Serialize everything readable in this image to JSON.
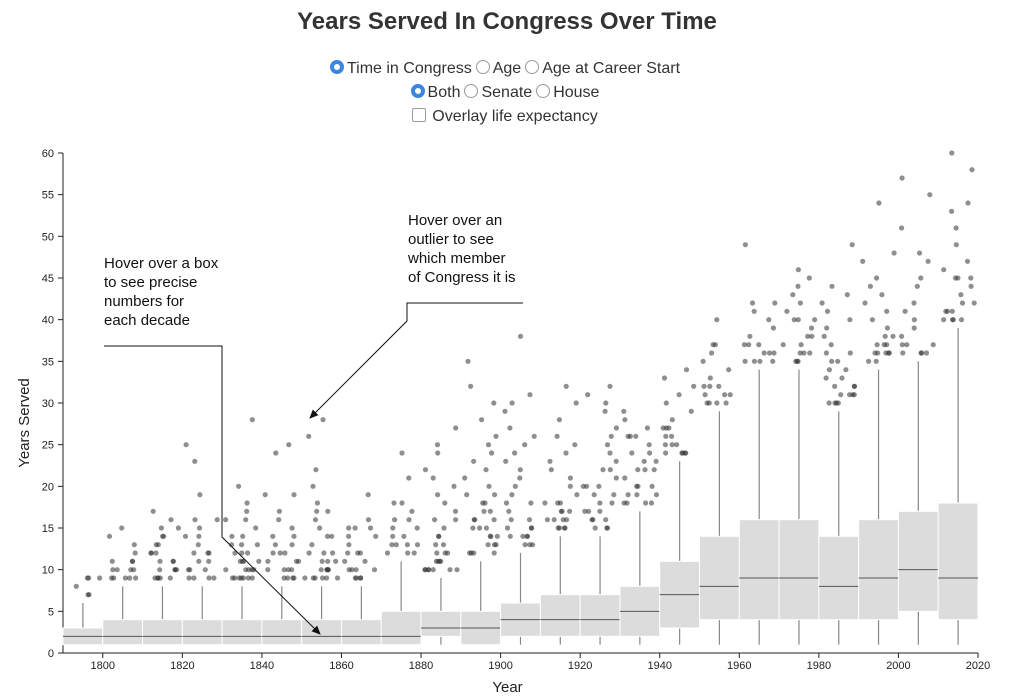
{
  "title": "Years Served In Congress Over Time",
  "controls": {
    "metric": [
      {
        "label": "Time in Congress",
        "selected": true
      },
      {
        "label": "Age",
        "selected": false
      },
      {
        "label": "Age at Career Start",
        "selected": false
      }
    ],
    "chamber": [
      {
        "label": "Both",
        "selected": true
      },
      {
        "label": "Senate",
        "selected": false
      },
      {
        "label": "House",
        "selected": false
      }
    ],
    "overlay": {
      "label": "Overlay life expectancy",
      "checked": false
    }
  },
  "colors": {
    "box_fill": "#dcdcdc",
    "accent": "#3b86e0",
    "point": "#333333"
  },
  "annotations": {
    "box": [
      "Hover over a box",
      "to see precise",
      "numbers for",
      "each decade"
    ],
    "outlier": [
      "Hover over an",
      "outlier to see",
      "which member",
      "of Congress it is"
    ]
  },
  "chart_data": {
    "type": "box",
    "title": "Years Served In Congress Over Time",
    "xlabel": "Year",
    "ylabel": "Years Served",
    "xlim": [
      1790,
      2020
    ],
    "ylim": [
      0,
      60
    ],
    "xticks": [
      1800,
      1820,
      1840,
      1860,
      1880,
      1900,
      1920,
      1940,
      1960,
      1980,
      2000,
      2020
    ],
    "yticks": [
      0,
      5,
      10,
      15,
      20,
      25,
      30,
      35,
      40,
      45,
      50,
      55,
      60
    ],
    "boxes": [
      {
        "decade": 1790,
        "min": 1,
        "q1": 1,
        "median": 2,
        "q3": 3,
        "max": 6,
        "outliers": [
          7,
          8,
          9,
          9,
          7,
          9
        ]
      },
      {
        "decade": 1800,
        "min": 1,
        "q1": 1,
        "median": 2,
        "q3": 4,
        "max": 8,
        "outliers": [
          9,
          9,
          9,
          10,
          10,
          10,
          11,
          11,
          9,
          9,
          10,
          11,
          12,
          13,
          14,
          15
        ]
      },
      {
        "decade": 1810,
        "min": 1,
        "q1": 1,
        "median": 2,
        "q3": 4,
        "max": 8,
        "outliers": [
          9,
          9,
          9,
          9,
          10,
          10,
          10,
          11,
          11,
          12,
          12,
          13,
          13,
          14,
          15,
          15,
          16,
          17,
          9,
          10,
          11,
          12,
          14
        ]
      },
      {
        "decade": 1820,
        "min": 1,
        "q1": 1,
        "median": 2,
        "q3": 4,
        "max": 8,
        "outliers": [
          9,
          9,
          9,
          10,
          10,
          11,
          11,
          12,
          12,
          13,
          14,
          15,
          16,
          19,
          25,
          9,
          10,
          12,
          14,
          16,
          23
        ]
      },
      {
        "decade": 1830,
        "min": 1,
        "q1": 1,
        "median": 2,
        "q3": 4,
        "max": 8,
        "outliers": [
          9,
          9,
          9,
          9,
          9,
          10,
          10,
          10,
          10,
          11,
          11,
          11,
          12,
          12,
          13,
          13,
          14,
          14,
          15,
          16,
          16,
          17,
          18,
          20,
          28,
          9,
          9,
          10,
          11,
          12,
          13
        ]
      },
      {
        "decade": 1840,
        "min": 1,
        "q1": 1,
        "median": 2,
        "q3": 4,
        "max": 8,
        "outliers": [
          9,
          9,
          9,
          10,
          10,
          10,
          11,
          11,
          12,
          12,
          13,
          13,
          14,
          14,
          15,
          16,
          17,
          19,
          24,
          25,
          9,
          10,
          11,
          12,
          19
        ]
      },
      {
        "decade": 1850,
        "min": 1,
        "q1": 1,
        "median": 2,
        "q3": 4,
        "max": 8,
        "outliers": [
          9,
          9,
          9,
          9,
          9,
          10,
          10,
          10,
          10,
          11,
          11,
          12,
          12,
          13,
          14,
          15,
          16,
          17,
          17,
          18,
          20,
          22,
          26,
          28,
          9,
          10,
          11,
          12,
          14
        ]
      },
      {
        "decade": 1860,
        "min": 1,
        "q1": 1,
        "median": 2,
        "q3": 4,
        "max": 8,
        "outliers": [
          9,
          9,
          9,
          10,
          10,
          10,
          11,
          11,
          12,
          12,
          13,
          14,
          15,
          15,
          16,
          19,
          9,
          10,
          12,
          14,
          15
        ]
      },
      {
        "decade": 1870,
        "min": 1,
        "q1": 1,
        "median": 2,
        "q3": 5,
        "max": 11,
        "outliers": [
          12,
          12,
          13,
          13,
          13,
          14,
          14,
          15,
          15,
          16,
          16,
          17,
          18,
          18,
          21,
          24,
          12,
          13
        ]
      },
      {
        "decade": 1880,
        "min": 1,
        "q1": 2,
        "median": 3,
        "q3": 5,
        "max": 9,
        "outliers": [
          10,
          10,
          10,
          10,
          10,
          11,
          11,
          11,
          12,
          12,
          13,
          13,
          14,
          14,
          15,
          16,
          16,
          17,
          18,
          19,
          20,
          21,
          22,
          24,
          25,
          27,
          10,
          10,
          11,
          12
        ]
      },
      {
        "decade": 1890,
        "min": 1,
        "q1": 1,
        "median": 3,
        "q3": 5,
        "max": 11,
        "outliers": [
          12,
          12,
          12,
          13,
          13,
          14,
          14,
          15,
          15,
          16,
          16,
          17,
          17,
          18,
          18,
          19,
          19,
          20,
          21,
          22,
          23,
          24,
          25,
          26,
          28,
          30,
          32,
          35,
          12,
          13,
          14,
          15,
          16
        ]
      },
      {
        "decade": 1900,
        "min": 1,
        "q1": 2,
        "median": 4,
        "q3": 6,
        "max": 12,
        "outliers": [
          13,
          13,
          14,
          14,
          14,
          15,
          15,
          16,
          16,
          17,
          18,
          19,
          20,
          21,
          22,
          23,
          24,
          25,
          26,
          27,
          29,
          30,
          31,
          38,
          13,
          14,
          15,
          18
        ]
      },
      {
        "decade": 1910,
        "min": 1,
        "q1": 2,
        "median": 4,
        "q3": 7,
        "max": 14,
        "outliers": [
          15,
          15,
          15,
          16,
          16,
          16,
          17,
          17,
          18,
          18,
          19,
          20,
          21,
          22,
          23,
          24,
          25,
          26,
          28,
          30,
          32,
          15,
          16,
          17,
          18
        ]
      },
      {
        "decade": 1920,
        "min": 1,
        "q1": 2,
        "median": 4,
        "q3": 7,
        "max": 14,
        "outliers": [
          15,
          15,
          16,
          16,
          17,
          17,
          18,
          18,
          19,
          20,
          20,
          21,
          22,
          22,
          23,
          24,
          25,
          26,
          27,
          29,
          30,
          31,
          32,
          15,
          16,
          17,
          19,
          20
        ]
      },
      {
        "decade": 1930,
        "min": 1,
        "q1": 2,
        "median": 5,
        "q3": 8,
        "max": 17,
        "outliers": [
          18,
          18,
          18,
          19,
          19,
          20,
          20,
          21,
          22,
          22,
          23,
          23,
          24,
          25,
          26,
          26,
          27,
          28,
          29,
          18,
          19,
          20,
          22,
          24,
          26
        ]
      },
      {
        "decade": 1940,
        "min": 1,
        "q1": 3,
        "median": 7,
        "q3": 11,
        "max": 23,
        "outliers": [
          24,
          24,
          24,
          24,
          25,
          25,
          26,
          26,
          27,
          27,
          28,
          29,
          30,
          31,
          32,
          33,
          34,
          24,
          25,
          27
        ]
      },
      {
        "decade": 1950,
        "min": 1,
        "q1": 4,
        "median": 8,
        "q3": 14,
        "max": 29,
        "outliers": [
          30,
          30,
          30,
          31,
          31,
          32,
          32,
          33,
          34,
          35,
          36,
          37,
          37,
          40,
          30,
          31,
          32
        ]
      },
      {
        "decade": 1960,
        "min": 1,
        "q1": 4,
        "median": 9,
        "q3": 16,
        "max": 34,
        "outliers": [
          35,
          35,
          35,
          36,
          36,
          37,
          37,
          38,
          39,
          40,
          41,
          42,
          42,
          49,
          35,
          36,
          37
        ]
      },
      {
        "decade": 1970,
        "min": 1,
        "q1": 4,
        "median": 9,
        "q3": 16,
        "max": 34,
        "outliers": [
          35,
          35,
          36,
          36,
          37,
          37,
          38,
          38,
          39,
          40,
          40,
          41,
          42,
          43,
          44,
          45,
          46,
          35,
          36,
          40
        ]
      },
      {
        "decade": 1980,
        "min": 1,
        "q1": 4,
        "median": 8,
        "q3": 14,
        "max": 29,
        "outliers": [
          30,
          30,
          30,
          31,
          31,
          31,
          32,
          32,
          33,
          33,
          34,
          35,
          35,
          36,
          36,
          37,
          38,
          39,
          40,
          41,
          42,
          43,
          44,
          49,
          30,
          31,
          32,
          34
        ]
      },
      {
        "decade": 1990,
        "min": 1,
        "q1": 4,
        "median": 9,
        "q3": 16,
        "max": 34,
        "outliers": [
          35,
          35,
          36,
          36,
          36,
          37,
          37,
          38,
          38,
          39,
          40,
          41,
          42,
          43,
          44,
          45,
          47,
          48,
          54,
          36,
          36,
          37
        ]
      },
      {
        "decade": 2000,
        "min": 1,
        "q1": 5,
        "median": 10,
        "q3": 17,
        "max": 35,
        "outliers": [
          36,
          36,
          36,
          37,
          37,
          38,
          39,
          40,
          41,
          42,
          44,
          45,
          47,
          48,
          51,
          55,
          57,
          36,
          37
        ]
      },
      {
        "decade": 2010,
        "min": 1,
        "q1": 4,
        "median": 9,
        "q3": 18,
        "max": 39,
        "outliers": [
          40,
          40,
          40,
          41,
          41,
          42,
          43,
          44,
          45,
          45,
          46,
          47,
          49,
          51,
          53,
          54,
          58,
          60,
          40,
          41,
          42,
          45
        ]
      }
    ]
  }
}
